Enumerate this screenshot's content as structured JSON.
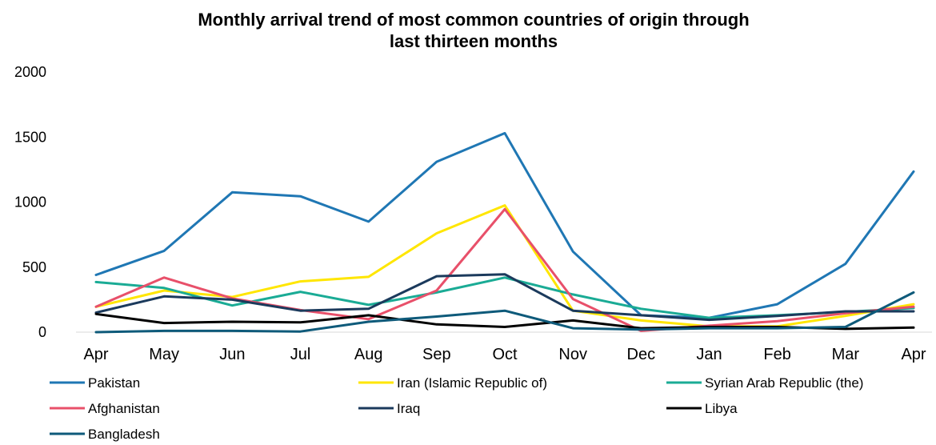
{
  "chart_data": {
    "type": "line",
    "title": [
      "Monthly arrival trend of most common countries of origin through",
      "last thirteen months"
    ],
    "xlabel": "",
    "ylabel": "",
    "ylim": [
      0,
      2000
    ],
    "yticks": [
      "0",
      "500",
      "1000",
      "1500",
      "2000"
    ],
    "grid": false,
    "legend_position": "bottom",
    "categories": [
      "Apr",
      "May",
      "Jun",
      "Jul",
      "Aug",
      "Sep",
      "Oct",
      "Nov",
      "Dec",
      "Jan",
      "Feb",
      "Mar",
      "Apr"
    ],
    "series": [
      {
        "name": "Pakistan",
        "color": "#1f77b4",
        "values": [
          440,
          625,
          1075,
          1045,
          850,
          1310,
          1530,
          620,
          130,
          110,
          215,
          525,
          1235
        ]
      },
      {
        "name": "Iran (Islamic Republic of)",
        "color": "#ffe600",
        "values": [
          195,
          320,
          270,
          390,
          425,
          760,
          975,
          165,
          90,
          45,
          45,
          125,
          215
        ]
      },
      {
        "name": "Syrian Arab Republic (the)",
        "color": "#1aab95",
        "values": [
          385,
          340,
          205,
          310,
          210,
          305,
          420,
          290,
          180,
          110,
          130,
          155,
          185
        ]
      },
      {
        "name": "Afghanistan",
        "color": "#e8506a",
        "values": [
          195,
          420,
          260,
          170,
          100,
          320,
          945,
          255,
          10,
          50,
          85,
          145,
          195
        ]
      },
      {
        "name": "Iraq",
        "color": "#1b3a5c",
        "values": [
          150,
          275,
          250,
          165,
          180,
          430,
          445,
          165,
          130,
          95,
          125,
          160,
          160
        ]
      },
      {
        "name": "Libya",
        "color": "#000000",
        "values": [
          140,
          70,
          80,
          75,
          130,
          60,
          40,
          90,
          30,
          40,
          40,
          25,
          35
        ]
      },
      {
        "name": "Bangladesh",
        "color": "#0e5a7a",
        "values": [
          0,
          10,
          10,
          5,
          80,
          120,
          165,
          30,
          20,
          30,
          30,
          40,
          305
        ]
      }
    ]
  }
}
